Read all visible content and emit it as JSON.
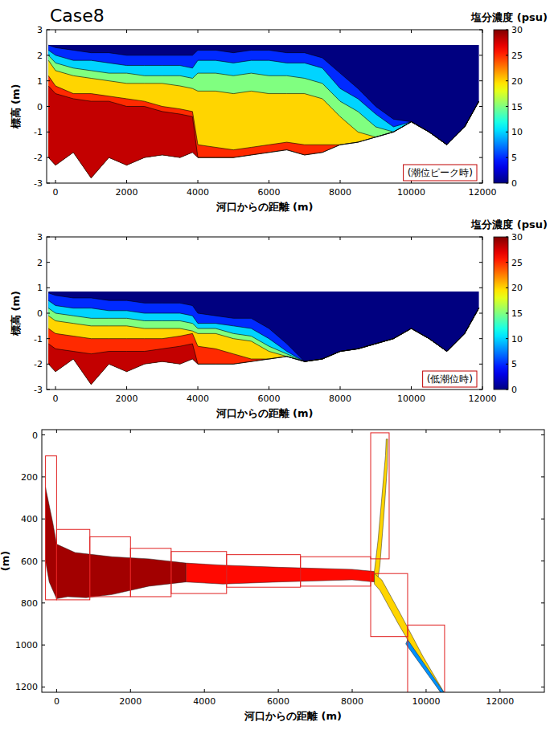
{
  "chart_data": [
    {
      "type": "section",
      "title": "Case8",
      "annotation": "(潮位ピーク時)",
      "x_label": "河口からの距離 (m)",
      "y_label": "標高 (m)",
      "xlim": [
        -250,
        12000
      ],
      "ylim": [
        -3,
        3
      ],
      "xticks": [
        0,
        2000,
        4000,
        6000,
        8000,
        10000,
        12000
      ],
      "yticks": [
        -3,
        -2,
        -1,
        0,
        1,
        2,
        3
      ],
      "x": [
        -200,
        0,
        500,
        1000,
        1500,
        2000,
        2500,
        3000,
        3500,
        3850,
        4000,
        4500,
        5000,
        5500,
        6000,
        6500,
        7000,
        7500,
        8000,
        8500,
        9000,
        9500,
        10000,
        10500,
        11000,
        11500,
        11900
      ],
      "water_level": 2.4,
      "bed": [
        -2.0,
        -2.3,
        -1.8,
        -2.8,
        -2.0,
        -2.3,
        -2.0,
        -1.9,
        -2.0,
        -1.8,
        -2.0,
        -2.0,
        -2.0,
        -1.9,
        -1.8,
        -1.7,
        -1.9,
        -1.8,
        -1.5,
        -1.4,
        -1.2,
        -1.0,
        -0.6,
        -1.0,
        -1.5,
        -0.8,
        0.2
      ],
      "isohalines": [
        {
          "value": 5,
          "z": [
            2.4,
            2.3,
            2.2,
            2.1,
            2.1,
            2.0,
            2.0,
            2.0,
            2.0,
            2.0,
            2.2,
            2.2,
            2.1,
            2.2,
            2.2,
            2.1,
            2.1,
            1.9,
            1.3,
            0.7,
            0.0,
            -0.5,
            -0.6,
            -1.0,
            -1.5,
            -0.8,
            0.2
          ]
        },
        {
          "value": 10,
          "z": [
            2.2,
            2.0,
            1.8,
            1.8,
            1.7,
            1.6,
            1.6,
            1.6,
            1.6,
            1.5,
            1.8,
            1.8,
            1.7,
            1.8,
            1.8,
            1.7,
            1.7,
            1.5,
            0.7,
            0.3,
            -0.3,
            -0.8,
            -0.6,
            -1.0,
            -1.5,
            -0.8,
            0.2
          ]
        },
        {
          "value": 15,
          "z": [
            2.0,
            1.7,
            1.5,
            1.4,
            1.3,
            1.3,
            1.2,
            1.2,
            1.2,
            1.1,
            1.3,
            1.3,
            1.2,
            1.3,
            1.2,
            1.2,
            1.1,
            0.9,
            0.2,
            -0.2,
            -0.8,
            -1.0,
            -0.6,
            -1.0,
            -1.5,
            -0.8,
            0.2
          ]
        },
        {
          "value": 20,
          "z": [
            1.8,
            1.4,
            1.2,
            1.1,
            1.0,
            0.9,
            0.9,
            0.9,
            0.8,
            0.7,
            0.6,
            0.6,
            0.5,
            0.6,
            0.5,
            0.5,
            0.5,
            0.3,
            -0.4,
            -1.0,
            -1.2,
            -1.0,
            -0.6,
            -1.0,
            -1.5,
            -0.8,
            0.2
          ]
        },
        {
          "value": 25,
          "z": [
            1.2,
            0.8,
            0.5,
            0.5,
            0.4,
            0.3,
            0.2,
            0.0,
            -0.1,
            -0.2,
            -1.5,
            -1.6,
            -1.7,
            -1.6,
            -1.5,
            -1.4,
            -1.5,
            -1.5,
            -1.5,
            -1.4,
            -1.2,
            -1.0,
            -0.6,
            -1.0,
            -1.5,
            -0.8,
            0.2
          ]
        },
        {
          "value": 28,
          "z": [
            0.8,
            0.5,
            0.3,
            0.2,
            0.2,
            0.0,
            0.0,
            -0.2,
            -0.3,
            -0.4,
            -2.0,
            -2.0,
            -2.0,
            -1.9,
            -1.8,
            -1.7,
            -1.9,
            -1.8,
            -1.5,
            -1.4,
            -1.2,
            -1.0,
            -0.6,
            -1.0,
            -1.5,
            -0.8,
            0.2
          ]
        }
      ],
      "colorbar": {
        "label": "塩分濃度 (psu)",
        "range": [
          0,
          30
        ],
        "ticks": [
          0,
          5,
          10,
          15,
          20,
          25,
          30
        ]
      }
    },
    {
      "type": "section",
      "annotation": "(低潮位時)",
      "x_label": "河口からの距離 (m)",
      "y_label": "標高 (m)",
      "xlim": [
        -250,
        12000
      ],
      "ylim": [
        -3,
        3
      ],
      "xticks": [
        0,
        2000,
        4000,
        6000,
        8000,
        10000,
        12000
      ],
      "yticks": [
        -3,
        -2,
        -1,
        0,
        1,
        2,
        3
      ],
      "x": [
        -200,
        0,
        500,
        1000,
        1500,
        2000,
        2500,
        3000,
        3500,
        3850,
        4000,
        4500,
        5000,
        5500,
        6000,
        6500,
        7000,
        7500,
        8000,
        8500,
        9000,
        9500,
        10000,
        10500,
        11000,
        11500,
        11900
      ],
      "water_level": 0.85,
      "bed": [
        -2.0,
        -2.3,
        -1.8,
        -2.8,
        -2.0,
        -2.3,
        -2.0,
        -1.9,
        -2.0,
        -1.8,
        -2.0,
        -2.0,
        -2.0,
        -1.9,
        -1.8,
        -1.7,
        -1.9,
        -1.8,
        -1.5,
        -1.4,
        -1.2,
        -1.0,
        -0.6,
        -1.0,
        -1.5,
        -0.8,
        0.2
      ],
      "isohalines": [
        {
          "value": 5,
          "z": [
            0.8,
            0.7,
            0.6,
            0.6,
            0.5,
            0.5,
            0.4,
            0.4,
            0.4,
            0.3,
            0.0,
            -0.1,
            -0.2,
            -0.2,
            -0.6,
            -1.2,
            -1.9,
            -1.8,
            -1.5,
            -1.4,
            -1.2,
            -1.0,
            -0.6,
            -1.0,
            -1.5,
            -0.8,
            0.2
          ]
        },
        {
          "value": 10,
          "z": [
            0.5,
            0.3,
            0.2,
            0.2,
            0.1,
            0.1,
            0.0,
            0.0,
            0.0,
            -0.1,
            -0.4,
            -0.4,
            -0.5,
            -0.6,
            -1.0,
            -1.5,
            -1.9,
            -1.8,
            -1.5,
            -1.4,
            -1.2,
            -1.0,
            -0.6,
            -1.0,
            -1.5,
            -0.8,
            0.2
          ]
        },
        {
          "value": 15,
          "z": [
            0.2,
            0.0,
            -0.1,
            -0.2,
            -0.2,
            -0.2,
            -0.3,
            -0.3,
            -0.3,
            -0.4,
            -0.6,
            -0.6,
            -0.8,
            -0.9,
            -1.3,
            -1.6,
            -1.9,
            -1.8,
            -1.5,
            -1.4,
            -1.2,
            -1.0,
            -0.6,
            -1.0,
            -1.5,
            -0.8,
            0.2
          ]
        },
        {
          "value": 20,
          "z": [
            -0.1,
            -0.3,
            -0.4,
            -0.5,
            -0.5,
            -0.5,
            -0.6,
            -0.6,
            -0.6,
            -0.7,
            -0.8,
            -0.8,
            -1.0,
            -1.1,
            -1.5,
            -1.7,
            -1.9,
            -1.8,
            -1.5,
            -1.4,
            -1.2,
            -1.0,
            -0.6,
            -1.0,
            -1.5,
            -0.8,
            0.2
          ]
        },
        {
          "value": 25,
          "z": [
            -0.6,
            -0.8,
            -0.9,
            -1.0,
            -1.0,
            -1.0,
            -1.0,
            -1.0,
            -0.9,
            -0.8,
            -1.3,
            -1.4,
            -1.6,
            -1.8,
            -1.8,
            -1.7,
            -1.9,
            -1.8,
            -1.5,
            -1.4,
            -1.2,
            -1.0,
            -0.6,
            -1.0,
            -1.5,
            -0.8,
            0.2
          ]
        },
        {
          "value": 28,
          "z": [
            -1.2,
            -1.4,
            -1.5,
            -1.6,
            -1.5,
            -1.5,
            -1.5,
            -1.4,
            -1.3,
            -1.2,
            -2.0,
            -2.0,
            -2.0,
            -1.9,
            -1.8,
            -1.7,
            -1.9,
            -1.8,
            -1.5,
            -1.4,
            -1.2,
            -1.0,
            -0.6,
            -1.0,
            -1.5,
            -0.8,
            0.2
          ]
        }
      ],
      "colorbar": {
        "label": "塩分濃度 (psu)",
        "range": [
          0,
          30
        ],
        "ticks": [
          0,
          5,
          10,
          15,
          20,
          25,
          30
        ]
      }
    },
    {
      "type": "plan",
      "x_label": "河口からの距離 (m)",
      "y_label": "(m)",
      "xlim": [
        -400,
        13200
      ],
      "ylim": [
        1225,
        -25
      ],
      "xticks": [
        0,
        2000,
        4000,
        6000,
        8000,
        10000,
        12000
      ],
      "yticks": [
        0,
        200,
        400,
        600,
        800,
        1000,
        1200
      ],
      "zones": [
        {
          "value": 29,
          "polygon": [
            [
              -300,
              250
            ],
            [
              -100,
              420
            ],
            [
              0,
              520
            ],
            [
              500,
              560
            ],
            [
              1500,
              580
            ],
            [
              2500,
              590
            ],
            [
              3500,
              610
            ],
            [
              3500,
              700
            ],
            [
              2500,
              720
            ],
            [
              1500,
              760
            ],
            [
              800,
              775
            ],
            [
              300,
              770
            ],
            [
              0,
              780
            ],
            [
              -200,
              700
            ],
            [
              -300,
              600
            ]
          ]
        },
        {
          "value": 26,
          "polygon": [
            [
              3500,
              610
            ],
            [
              4500,
              620
            ],
            [
              6000,
              630
            ],
            [
              8000,
              640
            ],
            [
              8600,
              650
            ],
            [
              8600,
              700
            ],
            [
              8000,
              690
            ],
            [
              6000,
              700
            ],
            [
              4500,
              710
            ],
            [
              3500,
              700
            ]
          ]
        },
        {
          "value": 20,
          "polygon": [
            [
              8600,
              650
            ],
            [
              8700,
              500
            ],
            [
              8800,
              300
            ],
            [
              8900,
              100
            ],
            [
              8920,
              20
            ],
            [
              8960,
              20
            ],
            [
              8950,
              150
            ],
            [
              8850,
              400
            ],
            [
              8750,
              620
            ],
            [
              8700,
              680
            ],
            [
              8600,
              700
            ]
          ]
        },
        {
          "value": 20,
          "polygon": [
            [
              8600,
              660
            ],
            [
              8800,
              690
            ],
            [
              9300,
              850
            ],
            [
              9900,
              1050
            ],
            [
              10500,
              1230
            ],
            [
              10450,
              1240
            ],
            [
              9850,
              1080
            ],
            [
              9250,
              900
            ],
            [
              8750,
              740
            ],
            [
              8600,
              710
            ]
          ]
        },
        {
          "value": 8,
          "polygon": [
            [
              9500,
              975
            ],
            [
              10500,
              1230
            ],
            [
              10450,
              1240
            ],
            [
              9450,
              995
            ]
          ]
        }
      ],
      "regions": [
        [
          -300,
          0,
          100,
          785
        ],
        [
          0,
          900,
          450,
          785
        ],
        [
          900,
          2000,
          485,
          770
        ],
        [
          2000,
          3100,
          540,
          770
        ],
        [
          3100,
          4600,
          555,
          755
        ],
        [
          4600,
          6600,
          570,
          725
        ],
        [
          6600,
          8500,
          580,
          720
        ],
        [
          8500,
          9000,
          -10,
          590
        ],
        [
          8500,
          9500,
          660,
          960
        ],
        [
          9500,
          10500,
          905,
          1240
        ]
      ]
    }
  ]
}
